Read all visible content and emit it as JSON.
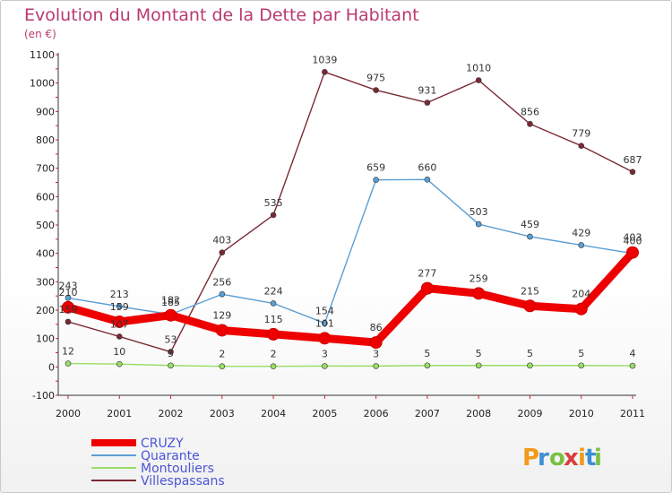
{
  "chart_data": {
    "type": "line",
    "title": "Evolution du Montant de la Dette par Habitant",
    "subtitle": "(en €)",
    "x": [
      "2000",
      "2001",
      "2002",
      "2003",
      "2004",
      "2005",
      "2006",
      "2007",
      "2008",
      "2009",
      "2010",
      "2011"
    ],
    "ylim": [
      -100,
      1100
    ],
    "yticks": [
      -100,
      0,
      100,
      200,
      300,
      400,
      500,
      600,
      700,
      800,
      900,
      1000,
      1100
    ],
    "grid": false,
    "legend_position": "bottom-left",
    "series": [
      {
        "name": "CRUZY",
        "color": "#ee0000",
        "values": [
          210,
          159,
          182,
          129,
          115,
          101,
          86,
          277,
          259,
          215,
          204,
          403
        ]
      },
      {
        "name": "Quarante",
        "color": "#5a9fd4",
        "values": [
          243,
          213,
          185,
          256,
          224,
          154,
          659,
          660,
          503,
          459,
          429,
          400
        ]
      },
      {
        "name": "Montouliers",
        "color": "#99dd66",
        "values": [
          12,
          10,
          5,
          2,
          2,
          3,
          3,
          5,
          5,
          5,
          5,
          4
        ]
      },
      {
        "name": "Villespassans",
        "color": "#7a2a33",
        "values": [
          159,
          107,
          53,
          403,
          535,
          1039,
          975,
          931,
          1010,
          856,
          779,
          687
        ]
      }
    ]
  },
  "brand": {
    "text": "Proxiti"
  }
}
